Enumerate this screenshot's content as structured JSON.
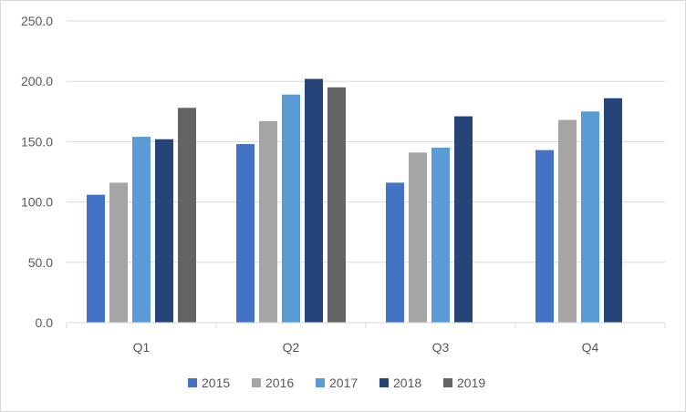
{
  "chart_data": {
    "type": "bar",
    "categories": [
      "Q1",
      "Q2",
      "Q3",
      "Q4"
    ],
    "series": [
      {
        "name": "2015",
        "color": "#4472C4",
        "values": [
          106,
          148,
          116,
          143
        ]
      },
      {
        "name": "2016",
        "color": "#A5A5A5",
        "values": [
          116,
          167,
          141,
          168
        ]
      },
      {
        "name": "2017",
        "color": "#5B9BD5",
        "values": [
          154,
          189,
          145,
          175
        ]
      },
      {
        "name": "2018",
        "color": "#264478",
        "values": [
          152,
          202,
          171,
          186
        ]
      },
      {
        "name": "2019",
        "color": "#636363",
        "values": [
          178,
          195,
          null,
          null
        ]
      }
    ],
    "yticks": [
      "0.0",
      "50.0",
      "100.0",
      "150.0",
      "200.0",
      "250.0"
    ],
    "ylim": [
      0,
      250
    ],
    "grid": true,
    "legend": "bottom",
    "title": "",
    "xlabel": "",
    "ylabel": ""
  }
}
